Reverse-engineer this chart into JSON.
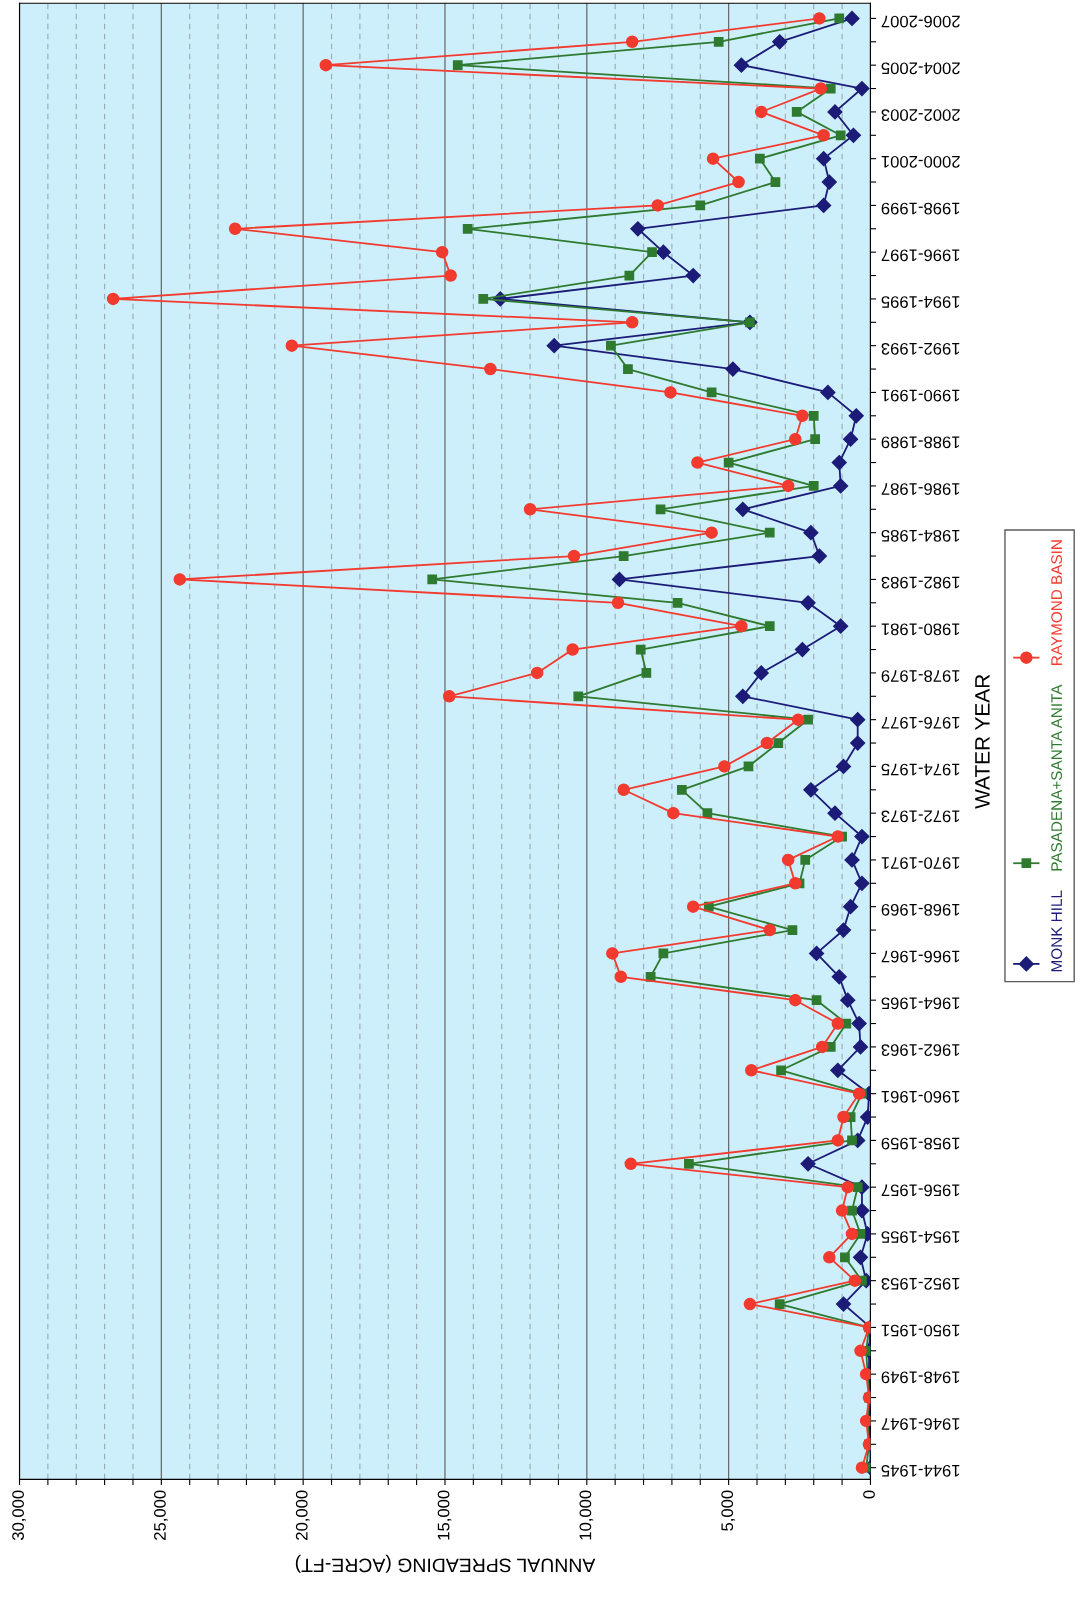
{
  "chart_data": {
    "type": "line",
    "orientation": "horizontal",
    "xlabel": "ANNUAL SPREADING (ACRE-FT)",
    "ylabel": "WATER YEAR",
    "categories": [
      "2006-2007",
      null,
      "2004-2005",
      null,
      "2002-2003",
      null,
      "2000-2001",
      null,
      "1998-1999",
      null,
      "1996-1997",
      null,
      "1994-1995",
      null,
      "1992-1993",
      null,
      "1990-1991",
      null,
      "1988-1989",
      null,
      "1986-1987",
      null,
      "1984-1985",
      null,
      "1982-1983",
      null,
      "1980-1981",
      null,
      "1978-1979",
      null,
      "1976-1977",
      null,
      "1974-1975",
      null,
      "1972-1973",
      null,
      "1970-1971",
      null,
      "1968-1969",
      null,
      "1966-1967",
      null,
      "1964-1965",
      null,
      "1962-1963",
      null,
      "1960-1961",
      null,
      "1958-1959",
      null,
      "1956-1957",
      null,
      "1954-1955",
      null,
      "1952-1953",
      null,
      "1950-1951",
      null,
      "1948-1949",
      null,
      "1946-1947",
      null,
      "1944-1945"
    ],
    "series": [
      {
        "name": "MONK HILL",
        "color": "#1c1c78",
        "marker": "diamond",
        "values": [
          650,
          3200,
          4550,
          300,
          1250,
          600,
          1650,
          1450,
          1650,
          8200,
          7300,
          6250,
          13050,
          4250,
          11150,
          4850,
          1500,
          500,
          700,
          1100,
          1050,
          4500,
          2100,
          1800,
          8850,
          2200,
          1050,
          2400,
          3850,
          4500,
          450,
          450,
          950,
          2100,
          1250,
          300,
          650,
          300,
          700,
          950,
          1900,
          1100,
          800,
          400,
          350,
          1150,
          50,
          100,
          450,
          2200,
          300,
          300,
          100,
          350,
          150,
          950,
          0,
          50,
          50,
          0,
          50,
          0,
          0
        ]
      },
      {
        "name": "PASADENA+SANTA ANITA",
        "color": "#2e7a2e",
        "marker": "square",
        "values": [
          1100,
          5350,
          14550,
          1400,
          2600,
          1050,
          3900,
          3350,
          6000,
          14200,
          7700,
          8500,
          13650,
          4250,
          9150,
          8550,
          5600,
          2000,
          1950,
          5000,
          2000,
          7400,
          3550,
          8700,
          15450,
          6800,
          3550,
          8100,
          7900,
          10300,
          2200,
          3250,
          4300,
          6650,
          5750,
          1000,
          2300,
          2500,
          5700,
          2750,
          7300,
          7750,
          1900,
          850,
          1400,
          3150,
          300,
          700,
          650,
          6400,
          450,
          650,
          350,
          900,
          300,
          3200,
          50,
          150,
          100,
          50,
          100,
          50,
          150
        ]
      },
      {
        "name": "RAYMOND BASIN",
        "color": "#f23a2e",
        "marker": "circle",
        "values": [
          1800,
          8400,
          19200,
          1750,
          3850,
          1650,
          5550,
          4650,
          7500,
          22400,
          15100,
          14800,
          26700,
          8400,
          20400,
          13400,
          7050,
          2400,
          2650,
          6100,
          2900,
          12000,
          5600,
          10450,
          24350,
          8900,
          4550,
          10500,
          11750,
          14850,
          2550,
          3650,
          5150,
          8700,
          6950,
          1150,
          2900,
          2650,
          6250,
          3550,
          9100,
          8800,
          2650,
          1150,
          1700,
          4200,
          400,
          950,
          1150,
          8450,
          800,
          1000,
          650,
          1450,
          550,
          4250,
          50,
          350,
          150,
          50,
          150,
          50,
          300
        ]
      }
    ],
    "xlim": [
      30000,
      0
    ],
    "xticks": [
      0,
      {
        "value": 1000,
        "label": null
      },
      {
        "value": 2000,
        "label": null
      },
      {
        "value": 3000,
        "label": null
      },
      {
        "value": 4000,
        "label": null
      },
      {
        "value": 5000,
        "label": "5,000"
      },
      {
        "value": 6000,
        "label": null
      },
      {
        "value": 7000,
        "label": null
      },
      {
        "value": 8000,
        "label": null
      },
      {
        "value": 9000,
        "label": null
      },
      {
        "value": 10000,
        "label": "10,000"
      },
      {
        "value": 11000,
        "label": null
      },
      {
        "value": 12000,
        "label": null
      },
      {
        "value": 13000,
        "label": null
      },
      {
        "value": 14000,
        "label": null
      },
      {
        "value": 15000,
        "label": "15,000"
      },
      {
        "value": 16000,
        "label": null
      },
      {
        "value": 17000,
        "label": null
      },
      {
        "value": 18000,
        "label": null
      },
      {
        "value": 19000,
        "label": null
      },
      {
        "value": 20000,
        "label": "20,000"
      },
      {
        "value": 21000,
        "label": null
      },
      {
        "value": 22000,
        "label": null
      },
      {
        "value": 23000,
        "label": null
      },
      {
        "value": 24000,
        "label": null
      },
      {
        "value": 25000,
        "label": "25,000"
      },
      {
        "value": 26000,
        "label": null
      },
      {
        "value": 27000,
        "label": null
      },
      {
        "value": 28000,
        "label": null
      },
      {
        "value": 29000,
        "label": null
      },
      {
        "value": 30000,
        "label": "30,000"
      }
    ],
    "grid": "x",
    "legend": "right",
    "line_style": "solid"
  }
}
